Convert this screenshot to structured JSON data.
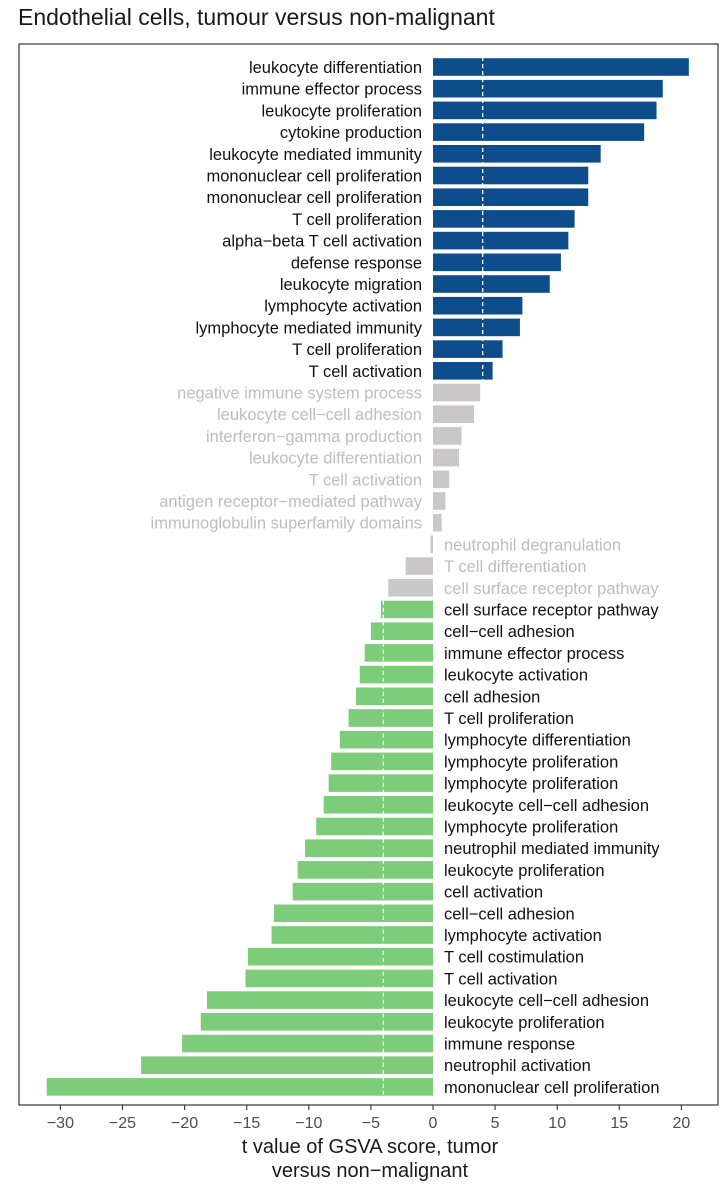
{
  "chart_data": {
    "type": "bar",
    "orientation": "horizontal",
    "title": "Endothelial cells, tumour versus non-malignant",
    "xlabel_lines": [
      "t value of GSVA score, tumor",
      "versus non−malignant"
    ],
    "ylabel": "",
    "xlim": [
      -31.5,
      22
    ],
    "xticks": [
      -30,
      -25,
      -20,
      -15,
      -10,
      -5,
      0,
      5,
      10,
      15,
      20
    ],
    "xtick_labels": [
      "−30",
      "−25",
      "−20",
      "−15",
      "−10",
      "−5",
      "0",
      "5",
      "10",
      "15",
      "20"
    ],
    "thresholds": [
      4,
      -4
    ],
    "grid": false,
    "colors": {
      "up": "#0e4d8c",
      "ns": "#c9c7c7",
      "down": "#7dcc7a",
      "ns_text": "#bdbdbd",
      "text": "#111111"
    },
    "bars": [
      {
        "label": "leukocyte differentiation",
        "value": 20.6,
        "group": "up"
      },
      {
        "label": "immune effector process",
        "value": 18.5,
        "group": "up"
      },
      {
        "label": "leukocyte proliferation",
        "value": 18.0,
        "group": "up"
      },
      {
        "label": "cytokine production",
        "value": 17.0,
        "group": "up"
      },
      {
        "label": "leukocyte mediated immunity",
        "value": 13.5,
        "group": "up"
      },
      {
        "label": "mononuclear cell proliferation",
        "value": 12.5,
        "group": "up"
      },
      {
        "label": "mononuclear cell proliferation",
        "value": 12.5,
        "group": "up"
      },
      {
        "label": "T cell proliferation",
        "value": 11.4,
        "group": "up"
      },
      {
        "label": "alpha−beta T cell activation",
        "value": 10.9,
        "group": "up"
      },
      {
        "label": "defense response",
        "value": 10.3,
        "group": "up"
      },
      {
        "label": "leukocyte migration",
        "value": 9.4,
        "group": "up"
      },
      {
        "label": "lymphocyte activation",
        "value": 7.2,
        "group": "up"
      },
      {
        "label": "lymphocyte mediated immunity",
        "value": 7.0,
        "group": "up"
      },
      {
        "label": "T cell proliferation",
        "value": 5.6,
        "group": "up"
      },
      {
        "label": "T cell activation",
        "value": 4.8,
        "group": "up"
      },
      {
        "label": "negative immune system process",
        "value": 3.8,
        "group": "ns"
      },
      {
        "label": "leukocyte cell−cell adhesion",
        "value": 3.3,
        "group": "ns"
      },
      {
        "label": "interferon−gamma production",
        "value": 2.3,
        "group": "ns"
      },
      {
        "label": "leukocyte differentiation",
        "value": 2.1,
        "group": "ns"
      },
      {
        "label": "T cell activation",
        "value": 1.3,
        "group": "ns"
      },
      {
        "label": "antigen receptor−mediated pathway",
        "value": 1.0,
        "group": "ns"
      },
      {
        "label": "immunoglobulin superfamily domains",
        "value": 0.7,
        "group": "ns"
      },
      {
        "label": "neutrophil degranulation",
        "value": -0.2,
        "group": "ns"
      },
      {
        "label": "T cell differentiation",
        "value": -2.2,
        "group": "ns"
      },
      {
        "label": "cell surface receptor pathway",
        "value": -3.6,
        "group": "ns"
      },
      {
        "label": "cell surface receptor pathway",
        "value": -4.2,
        "group": "down"
      },
      {
        "label": "cell−cell adhesion",
        "value": -5.0,
        "group": "down"
      },
      {
        "label": "immune effector process",
        "value": -5.5,
        "group": "down"
      },
      {
        "label": "leukocyte activation",
        "value": -5.9,
        "group": "down"
      },
      {
        "label": "cell adhesion",
        "value": -6.2,
        "group": "down"
      },
      {
        "label": "T cell proliferation",
        "value": -6.8,
        "group": "down"
      },
      {
        "label": "lymphocyte differentiation",
        "value": -7.5,
        "group": "down"
      },
      {
        "label": "lymphocyte proliferation",
        "value": -8.2,
        "group": "down"
      },
      {
        "label": "lymphocyte proliferation",
        "value": -8.4,
        "group": "down"
      },
      {
        "label": "leukocyte cell−cell adhesion",
        "value": -8.8,
        "group": "down"
      },
      {
        "label": "lymphocyte proliferation",
        "value": -9.4,
        "group": "down"
      },
      {
        "label": "neutrophil mediated immunity",
        "value": -10.3,
        "group": "down"
      },
      {
        "label": "leukocyte proliferation",
        "value": -10.9,
        "group": "down"
      },
      {
        "label": "cell activation",
        "value": -11.3,
        "group": "down"
      },
      {
        "label": "cell−cell adhesion",
        "value": -12.8,
        "group": "down"
      },
      {
        "label": "lymphocyte activation",
        "value": -13.0,
        "group": "down"
      },
      {
        "label": "T cell costimulation",
        "value": -14.9,
        "group": "down"
      },
      {
        "label": "T cell activation",
        "value": -15.1,
        "group": "down"
      },
      {
        "label": "leukocyte cell−cell adhesion",
        "value": -18.2,
        "group": "down"
      },
      {
        "label": "leukocyte proliferation",
        "value": -18.7,
        "group": "down"
      },
      {
        "label": "immune response",
        "value": -20.2,
        "group": "down"
      },
      {
        "label": "neutrophil activation",
        "value": -23.5,
        "group": "down"
      },
      {
        "label": "mononuclear cell proliferation",
        "value": -31.1,
        "group": "down"
      }
    ]
  }
}
